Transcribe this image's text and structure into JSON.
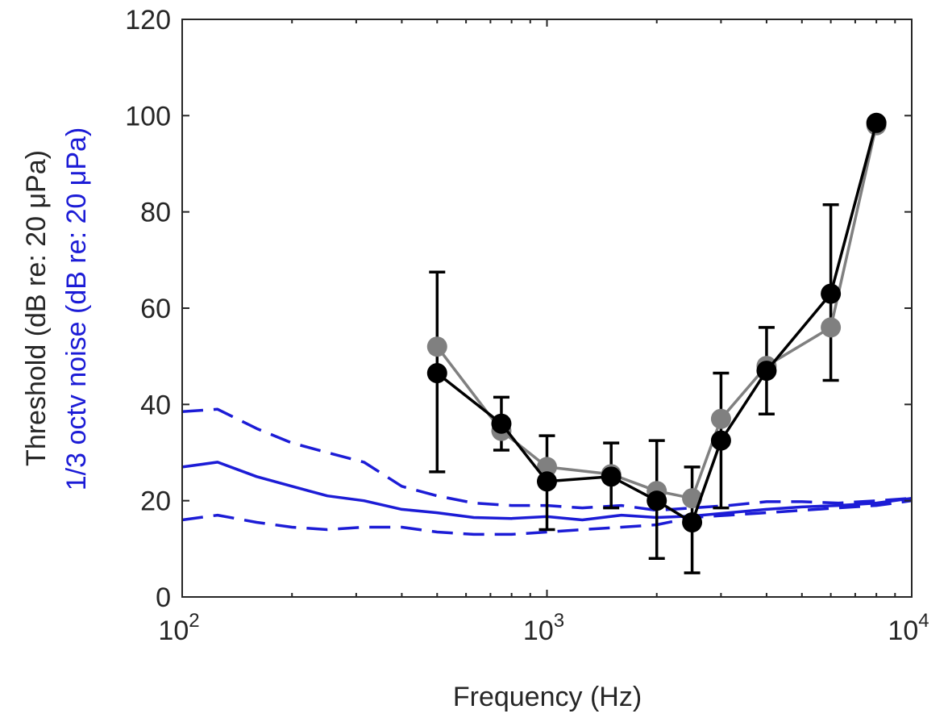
{
  "chart_data": {
    "type": "line",
    "x_scale": "log",
    "xlim": [
      100,
      10000
    ],
    "ylim": [
      0,
      120
    ],
    "xlabel": "Frequency (Hz)",
    "ylabel": "Threshold (dB re: 20 μPa)",
    "ylabel2": "1/3 octv noise (dB re: 20 μPa)",
    "x_ticks": [
      {
        "value": 100,
        "base": "10",
        "exp": "2"
      },
      {
        "value": 1000,
        "base": "10",
        "exp": "3"
      },
      {
        "value": 10000,
        "base": "10",
        "exp": "4"
      }
    ],
    "y_ticks": [
      0,
      20,
      40,
      60,
      80,
      100,
      120
    ],
    "y_tick_labels": [
      "0",
      "20",
      "40",
      "60",
      "80",
      "100",
      "120"
    ],
    "grid": false,
    "colors": {
      "axis": "#262626",
      "grey_series": "#808080",
      "black_series": "#000000",
      "noise": "#1c1cd6"
    },
    "series": [
      {
        "color": "#808080",
        "style": "marker-line",
        "x": [
          500,
          750,
          1000,
          1500,
          2000,
          2500,
          3000,
          4000,
          6000,
          8000
        ],
        "y": [
          52,
          34.5,
          27,
          25.5,
          22,
          20.5,
          37,
          48,
          56,
          98
        ]
      },
      {
        "color": "#000000",
        "style": "marker-line",
        "x": [
          500,
          750,
          1000,
          1500,
          2000,
          2500,
          3000,
          4000,
          6000,
          8000
        ],
        "y": [
          46.5,
          36,
          24,
          25,
          20,
          15.5,
          32.5,
          47,
          63,
          98.5
        ],
        "err_low": [
          26,
          30.5,
          14,
          18.5,
          8,
          5,
          18.5,
          38,
          45,
          null
        ],
        "err_high": [
          67.5,
          41.5,
          33.5,
          32,
          32.5,
          27,
          46.5,
          56,
          81.5,
          null
        ]
      },
      {
        "color": "#1c1cd6",
        "style": "solid",
        "x": [
          100,
          125,
          160,
          200,
          250,
          315,
          400,
          500,
          630,
          800,
          1000,
          1250,
          1600,
          2000,
          2500,
          3150,
          4000,
          5000,
          6300,
          8000,
          10000
        ],
        "y": [
          27,
          28,
          25,
          23,
          21,
          20,
          18.2,
          17.5,
          16.5,
          16.3,
          16.7,
          16,
          17,
          16.5,
          16.8,
          17.5,
          18.2,
          18.7,
          19,
          19.5,
          20.5
        ]
      },
      {
        "color": "#1c1cd6",
        "style": "dashed",
        "x": [
          100,
          125,
          160,
          200,
          250,
          315,
          400,
          500,
          630,
          800,
          1000,
          1250,
          1600,
          2000,
          2500,
          3150,
          4000,
          5000,
          6300,
          8000,
          10000
        ],
        "y": [
          38.5,
          39,
          35,
          32,
          30,
          28,
          23,
          21,
          19.5,
          19,
          19,
          18.5,
          19,
          18,
          18.5,
          19,
          19.8,
          19.8,
          19.5,
          20,
          20.5
        ]
      },
      {
        "color": "#1c1cd6",
        "style": "dashed",
        "x": [
          100,
          125,
          160,
          200,
          250,
          315,
          400,
          500,
          630,
          800,
          1000,
          1250,
          1600,
          2000,
          2500,
          3150,
          4000,
          5000,
          6300,
          8000,
          10000
        ],
        "y": [
          16,
          17,
          15.5,
          14.5,
          14,
          14.5,
          14.5,
          13.5,
          13,
          13,
          13.5,
          14,
          14.5,
          15,
          16.5,
          17,
          17.5,
          18,
          18.5,
          19,
          20
        ]
      }
    ]
  }
}
